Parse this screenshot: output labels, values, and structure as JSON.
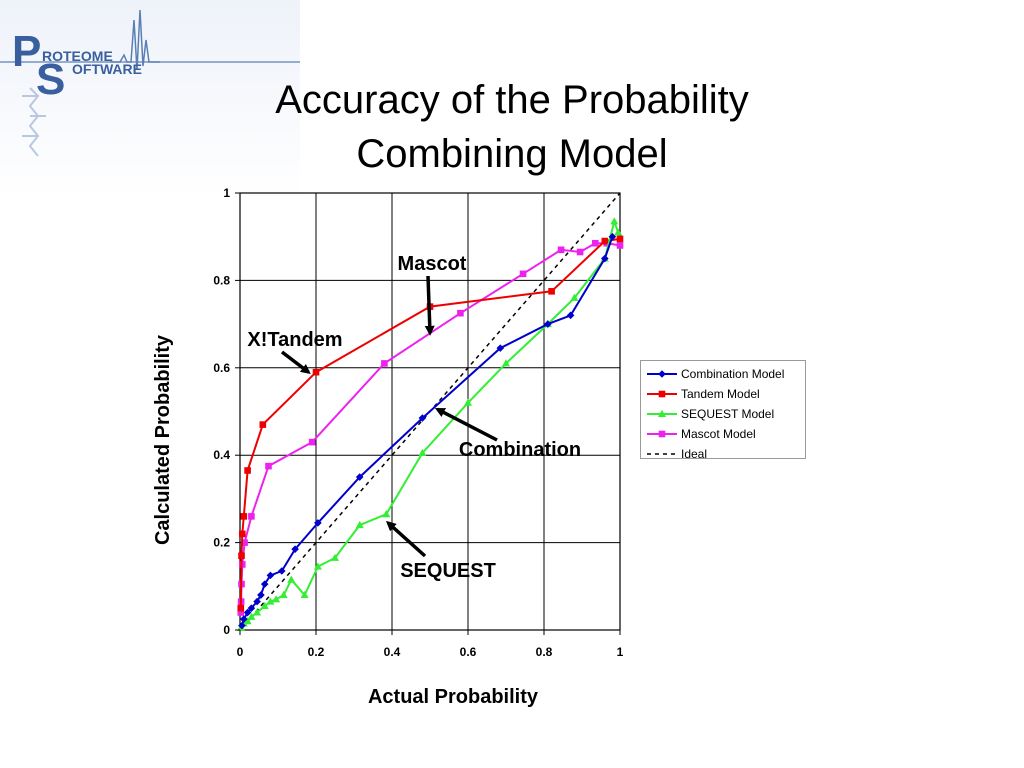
{
  "logo": {
    "line1": "ROTEOME",
    "line2": "OFTWARE",
    "letter_p": "P",
    "letter_s": "S"
  },
  "slide": {
    "title_line1": "Accuracy of the Probability",
    "title_line2": "Combining Model"
  },
  "chart_data": {
    "type": "line",
    "title": "",
    "xlabel": "Actual Probability",
    "ylabel": "Calculated Probability",
    "xlim": [
      0,
      1
    ],
    "ylim": [
      0,
      1
    ],
    "xticks": [
      "0",
      "0.2",
      "0.4",
      "0.6",
      "0.8",
      "1"
    ],
    "yticks": [
      "0",
      "0.2",
      "0.4",
      "0.6",
      "0.8",
      "1"
    ],
    "grid": true,
    "legend_position": "right",
    "series": [
      {
        "name": "Combination Model",
        "color": "#0000cc",
        "marker": "diamond",
        "points": [
          [
            0.005,
            0.01
          ],
          [
            0.01,
            0.025
          ],
          [
            0.02,
            0.04
          ],
          [
            0.03,
            0.05
          ],
          [
            0.045,
            0.065
          ],
          [
            0.055,
            0.08
          ],
          [
            0.065,
            0.105
          ],
          [
            0.08,
            0.125
          ],
          [
            0.11,
            0.135
          ],
          [
            0.145,
            0.185
          ],
          [
            0.205,
            0.245
          ],
          [
            0.315,
            0.35
          ],
          [
            0.48,
            0.485
          ],
          [
            0.685,
            0.645
          ],
          [
            0.81,
            0.7
          ],
          [
            0.87,
            0.72
          ],
          [
            0.96,
            0.85
          ],
          [
            0.98,
            0.9
          ]
        ]
      },
      {
        "name": "Tandem Model",
        "color": "#ee0000",
        "marker": "square",
        "points": [
          [
            0.002,
            0.05
          ],
          [
            0.004,
            0.17
          ],
          [
            0.006,
            0.22
          ],
          [
            0.01,
            0.26
          ],
          [
            0.02,
            0.365
          ],
          [
            0.06,
            0.47
          ],
          [
            0.2,
            0.59
          ],
          [
            0.5,
            0.74
          ],
          [
            0.82,
            0.775
          ],
          [
            0.96,
            0.89
          ],
          [
            1.0,
            0.895
          ]
        ]
      },
      {
        "name": "SEQUEST Model",
        "color": "#33ee33",
        "marker": "triangle",
        "points": [
          [
            0.003,
            0.005
          ],
          [
            0.01,
            0.015
          ],
          [
            0.02,
            0.02
          ],
          [
            0.03,
            0.03
          ],
          [
            0.045,
            0.04
          ],
          [
            0.065,
            0.055
          ],
          [
            0.08,
            0.065
          ],
          [
            0.095,
            0.07
          ],
          [
            0.115,
            0.08
          ],
          [
            0.135,
            0.115
          ],
          [
            0.17,
            0.08
          ],
          [
            0.205,
            0.145
          ],
          [
            0.25,
            0.165
          ],
          [
            0.315,
            0.24
          ],
          [
            0.385,
            0.265
          ],
          [
            0.48,
            0.405
          ],
          [
            0.6,
            0.52
          ],
          [
            0.7,
            0.61
          ],
          [
            0.81,
            0.7
          ],
          [
            0.88,
            0.76
          ],
          [
            0.96,
            0.85
          ],
          [
            0.985,
            0.935
          ],
          [
            0.995,
            0.91
          ]
        ]
      },
      {
        "name": "Mascot Model",
        "color": "#ee22ee",
        "marker": "square",
        "points": [
          [
            0.002,
            0.04
          ],
          [
            0.003,
            0.065
          ],
          [
            0.004,
            0.105
          ],
          [
            0.006,
            0.15
          ],
          [
            0.012,
            0.2
          ],
          [
            0.03,
            0.26
          ],
          [
            0.075,
            0.375
          ],
          [
            0.19,
            0.43
          ],
          [
            0.38,
            0.61
          ],
          [
            0.58,
            0.725
          ],
          [
            0.745,
            0.815
          ],
          [
            0.845,
            0.87
          ],
          [
            0.895,
            0.865
          ],
          [
            0.935,
            0.885
          ],
          [
            0.965,
            0.885
          ],
          [
            1.0,
            0.88
          ]
        ]
      },
      {
        "name": "Ideal",
        "color": "#000000",
        "marker": "none",
        "dashed": true,
        "points": [
          [
            0,
            0
          ],
          [
            1,
            1
          ]
        ]
      }
    ],
    "annotations": [
      {
        "text": "Mascot",
        "anchor": [
          0.5,
          0.68
        ]
      },
      {
        "text": "X!Tandem",
        "anchor": [
          0.18,
          0.59
        ]
      },
      {
        "text": "Combination",
        "anchor": [
          0.52,
          0.505
        ]
      },
      {
        "text": "SEQUEST",
        "anchor": [
          0.39,
          0.245
        ]
      }
    ]
  }
}
